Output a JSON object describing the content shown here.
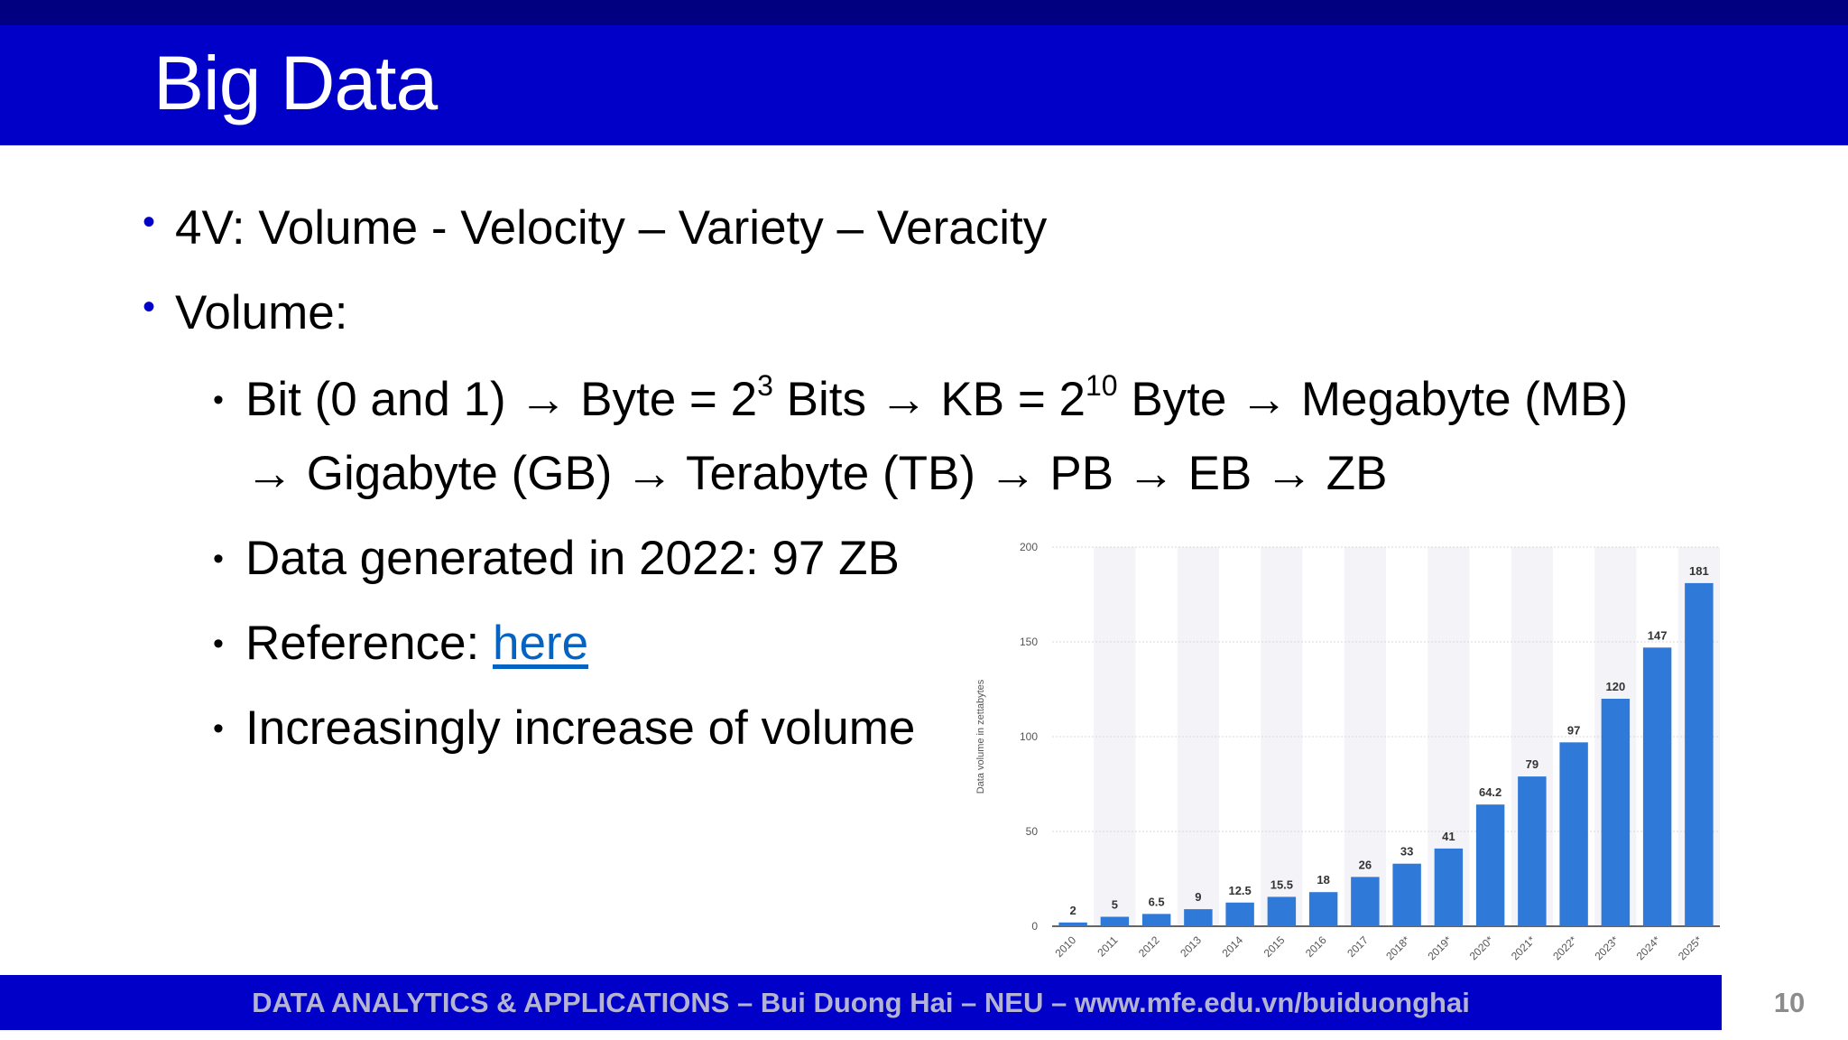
{
  "slide": {
    "title": "Big Data",
    "number": "10",
    "footer": "DATA ANALYTICS & APPLICATIONS –  Bui Duong Hai –  NEU – www.mfe.edu.vn/buiduonghai"
  },
  "bullets": {
    "four_v": "4V: Volume - Velocity – Variety – Veracity",
    "volume": "Volume:",
    "units_a1": "Bit (0 and 1) → Byte = 2",
    "units_a1_exp": "3",
    "units_a2": " Bits → KB = 2",
    "units_a2_exp": "10",
    "units_a3": " Byte → Megabyte (MB)",
    "units_b": "→ Gigabyte (GB) → Terabyte (TB) → PB → EB → ZB",
    "generated": "Data generated in 2022: 97 ZB",
    "reference_prefix": "Reference: ",
    "reference_link": "here",
    "increase": "Increasingly increase of volume"
  },
  "chart_data": {
    "type": "bar",
    "categories": [
      "2010",
      "2011",
      "2012",
      "2013",
      "2014",
      "2015",
      "2016",
      "2017",
      "2018*",
      "2019*",
      "2020*",
      "2021*",
      "2022*",
      "2023*",
      "2024*",
      "2025*"
    ],
    "values": [
      2,
      5,
      6.5,
      9,
      12.5,
      15.5,
      18,
      26,
      33,
      41,
      64.2,
      79,
      97,
      120,
      147,
      181
    ],
    "value_labels": [
      "2",
      "5",
      "6.5",
      "9",
      "12.5",
      "15.5",
      "18",
      "26",
      "33",
      "41",
      "64.2",
      "79",
      "97",
      "120",
      "147",
      "181"
    ],
    "ylabel": "Data volume in zettabytes",
    "xlabel": "",
    "ylim": [
      0,
      200
    ],
    "yticks": [
      0,
      50,
      100,
      150,
      200
    ],
    "grid": true,
    "bar_color": "#2f7ad8",
    "band_color": "#f4f4f8"
  },
  "colors": {
    "title_bar": "#0000c8",
    "top_strip": "#000080",
    "bullet_l1": "#0000c8",
    "link": "#0563c1",
    "footer_text": "#b4b4d2"
  }
}
